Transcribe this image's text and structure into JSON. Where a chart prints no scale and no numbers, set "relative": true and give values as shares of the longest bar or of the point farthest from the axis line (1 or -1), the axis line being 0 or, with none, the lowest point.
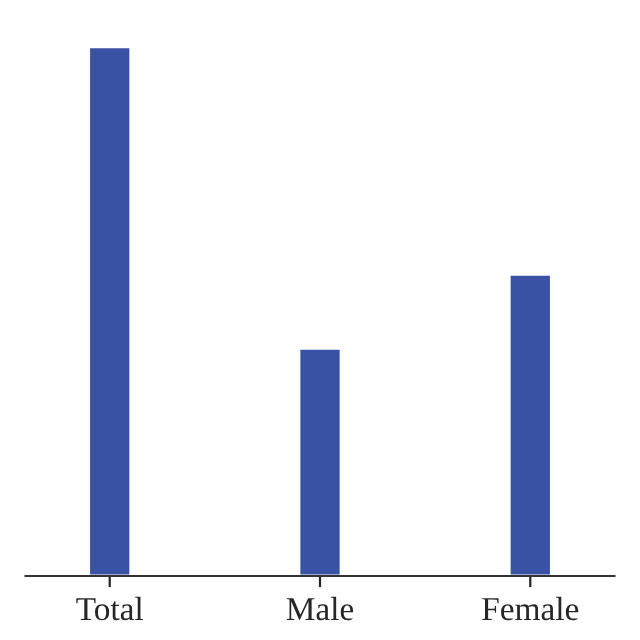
{
  "chart_data": {
    "type": "bar",
    "relative": true,
    "categories": [
      "Total",
      "Male",
      "Female"
    ],
    "values": [
      1,
      0.43,
      0.57
    ],
    "color": "#3a52a4",
    "grid": false,
    "legend": false
  }
}
